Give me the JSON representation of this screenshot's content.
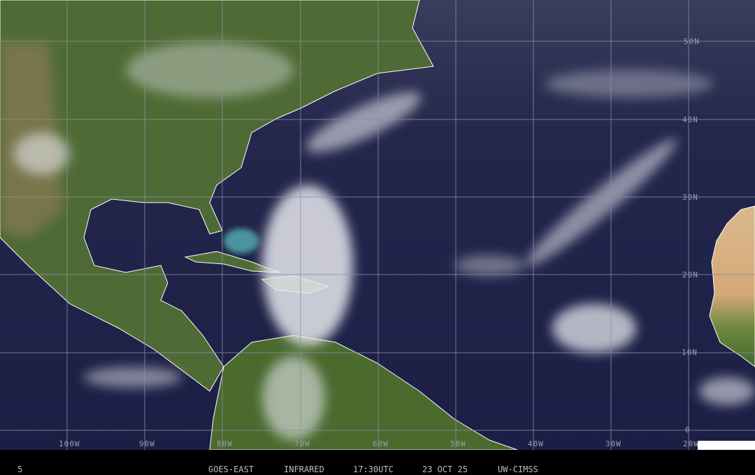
{
  "footer": {
    "frame": "5",
    "satellite": "GOES-EAST",
    "channel": "INFRARED",
    "time": "17:30UTC",
    "date": "23 OCT 25",
    "source": "UW-CIMSS"
  },
  "grid": {
    "latitude_labels": [
      "50N",
      "40N",
      "30N",
      "20N",
      "10N",
      "0"
    ],
    "longitude_labels": [
      "100W",
      "90W",
      "80W",
      "70W",
      "60W",
      "50W",
      "40W",
      "30W",
      "20W"
    ]
  },
  "colors": {
    "ocean": "#1f2348",
    "land": "#4d6a33",
    "desert": "#d8b98a",
    "cloud": "#e6e8ee",
    "grid": "#8c8fa6",
    "coastline": "#ffffff"
  }
}
